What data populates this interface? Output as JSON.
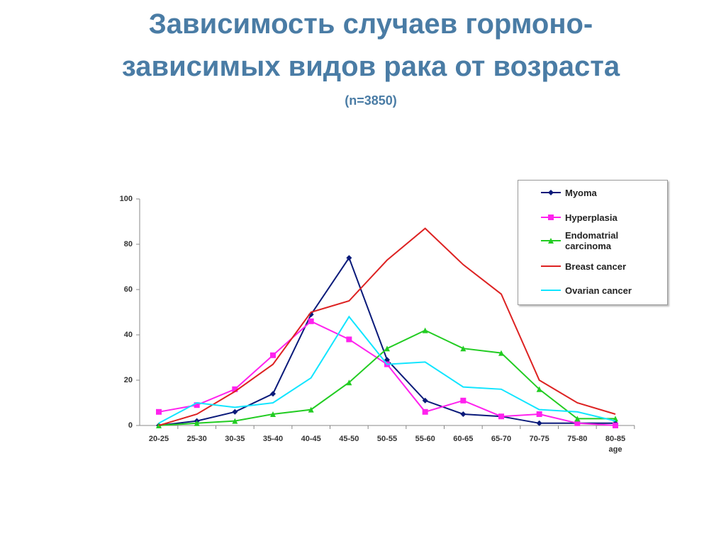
{
  "chart_data": {
    "type": "line",
    "title": [
      "Зависимость случаев гормоно-",
      "зависимых видов рака от возраста"
    ],
    "subtitle": "(n=3850)",
    "x_label": "age",
    "categories": [
      "20-25",
      "25-30",
      "30-35",
      "35-40",
      "40-45",
      "45-50",
      "50-55",
      "55-60",
      "60-65",
      "65-70",
      "70-75",
      "75-80",
      "80-85"
    ],
    "ylim": [
      0,
      100
    ],
    "yticks": [
      0,
      20,
      40,
      60,
      80,
      100
    ],
    "grid": false,
    "legend": "top-right",
    "series": [
      {
        "name": "Myoma",
        "color": "#0a1a7a",
        "marker": "diamond",
        "values": [
          0,
          2,
          6,
          14,
          49,
          74,
          29,
          11,
          5,
          4,
          1,
          1,
          1
        ]
      },
      {
        "name": "Hyperplasia",
        "color": "#ff22ee",
        "marker": "square",
        "values": [
          6,
          9,
          16,
          31,
          46,
          38,
          27,
          6,
          11,
          4,
          5,
          1,
          0
        ]
      },
      {
        "name": "Endomatrial carcinoma",
        "color": "#22cc22",
        "marker": "triangle",
        "values": [
          0,
          1,
          2,
          5,
          7,
          19,
          34,
          42,
          34,
          32,
          16,
          3,
          3
        ]
      },
      {
        "name": "Breast cancer",
        "color": "#dd2222",
        "marker": "none",
        "values": [
          0,
          5,
          15,
          27,
          50,
          55,
          73,
          87,
          71,
          58,
          20,
          10,
          5
        ]
      },
      {
        "name": "Ovarian cancer",
        "color": "#11e5ff",
        "marker": "none",
        "values": [
          1,
          10,
          8,
          10,
          21,
          48,
          27,
          28,
          17,
          16,
          7,
          6,
          2
        ]
      }
    ]
  }
}
